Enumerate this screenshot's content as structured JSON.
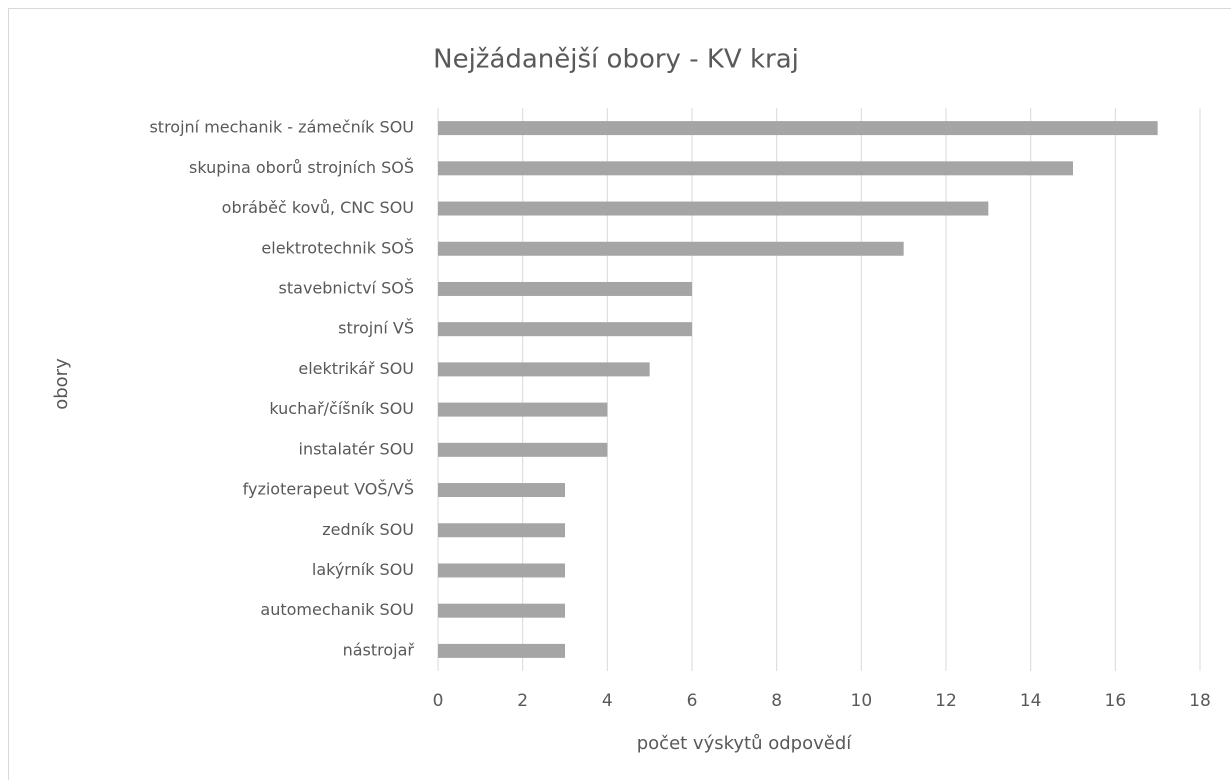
{
  "chart_data": {
    "type": "bar",
    "orientation": "horizontal",
    "title": "Nejžádanější obory - KV kraj",
    "x_label": "počet výskytů odpovědí",
    "y_label": "obory",
    "categories": [
      "strojní mechanik - zámečník SOU",
      "skupina oborů strojních SOŠ",
      "obráběč kovů, CNC SOU",
      "elektrotechnik SOŠ",
      "stavebnictví SOŠ",
      "strojní VŠ",
      "elektrikář SOU",
      "kuchař/číšník SOU",
      "instalatér SOU",
      "fyzioterapeut VOŠ/VŠ",
      "zedník SOU",
      "lakýrník SOU",
      "automechanik SOU",
      "nástrojař"
    ],
    "values": [
      17,
      15,
      13,
      11,
      6,
      6,
      5,
      4,
      4,
      3,
      3,
      3,
      3,
      3
    ],
    "color": "#a5a5a5",
    "xlim": [
      0,
      18
    ],
    "xticks": [
      0,
      2,
      4,
      6,
      8,
      10,
      12,
      14,
      16,
      18
    ],
    "grid": true
  }
}
